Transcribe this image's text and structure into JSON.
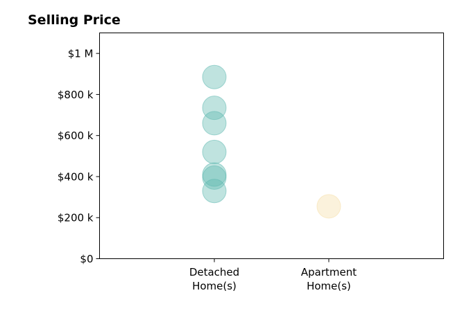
{
  "chart_data": {
    "type": "scatter",
    "title": "Selling Price",
    "xlabel": "",
    "ylabel": "",
    "categories": [
      {
        "label_lines": [
          "Detached",
          "Home(s)"
        ],
        "color": "#5fb8b0"
      },
      {
        "label_lines": [
          "Apartment",
          "Home(s)"
        ],
        "color": "#f5dfa8"
      }
    ],
    "ylim": [
      0,
      1100000
    ],
    "yticks": [
      {
        "value": 0,
        "label": "$0"
      },
      {
        "value": 200000,
        "label": "$200 k"
      },
      {
        "value": 400000,
        "label": "$400 k"
      },
      {
        "value": 600000,
        "label": "$600 k"
      },
      {
        "value": 800000,
        "label": "$800 k"
      },
      {
        "value": 1000000,
        "label": "$1 M"
      }
    ],
    "series": [
      {
        "category": 0,
        "values": [
          885000,
          735000,
          660000,
          520000,
          410000,
          395000,
          330000
        ]
      },
      {
        "category": 1,
        "values": [
          255000
        ]
      }
    ],
    "grid": false,
    "legend": "none"
  }
}
